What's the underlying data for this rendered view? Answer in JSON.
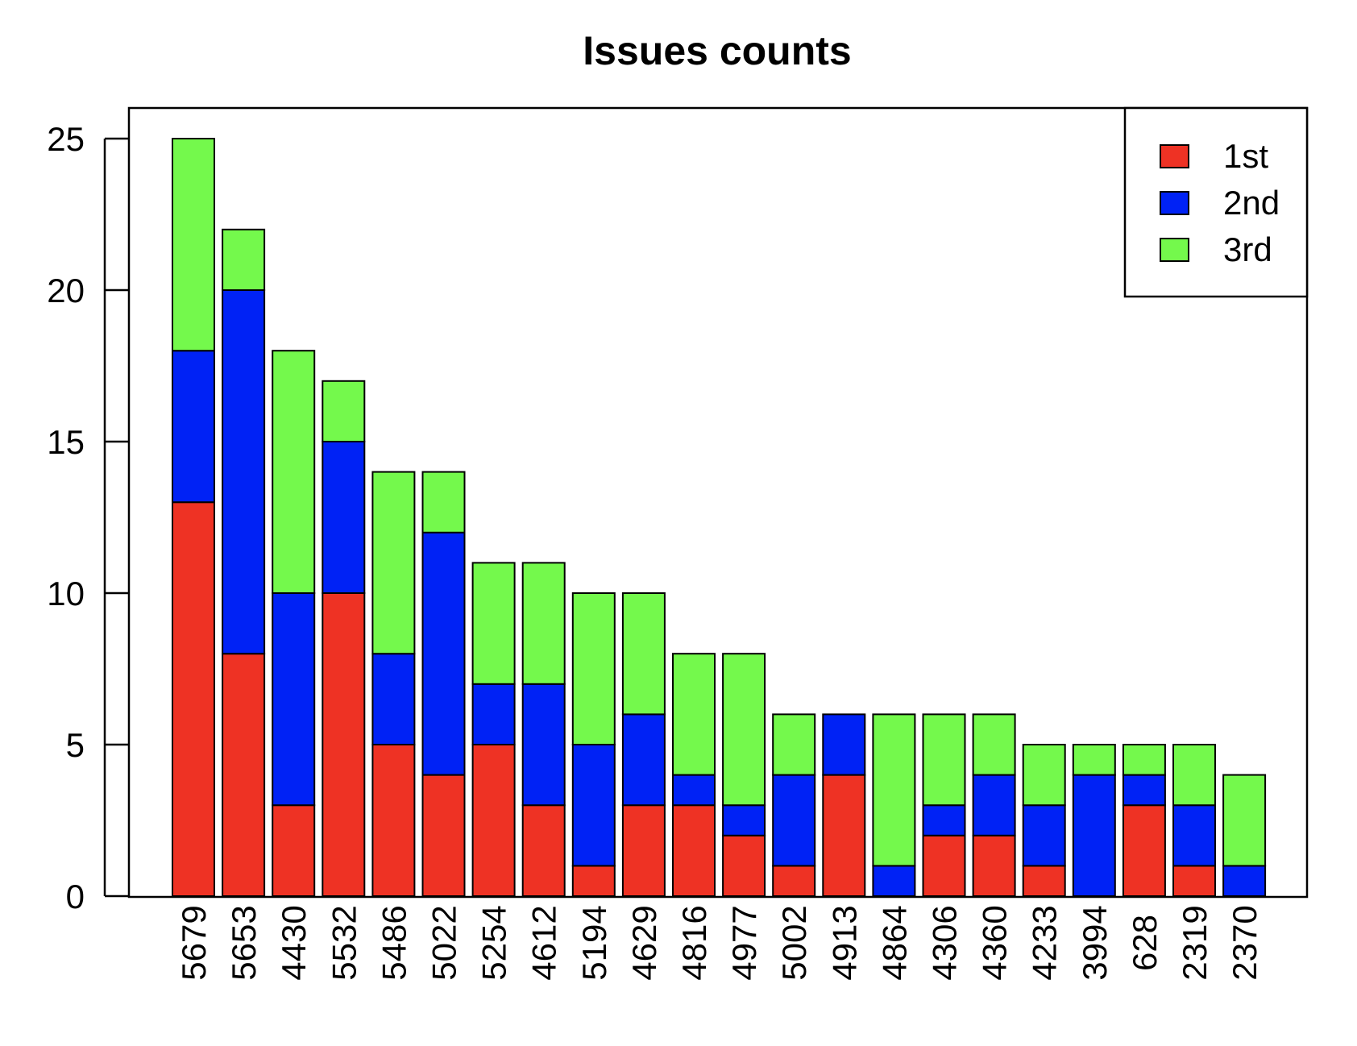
{
  "chart_data": {
    "type": "bar",
    "stacked": true,
    "title": "Issues counts",
    "xlabel": "",
    "ylabel": "",
    "ylim": [
      0,
      26
    ],
    "yticks": [
      0,
      5,
      10,
      15,
      20,
      25
    ],
    "grid": false,
    "legend_position": "top-right",
    "categories": [
      "5679",
      "5653",
      "4430",
      "5532",
      "5486",
      "5022",
      "5254",
      "4612",
      "5194",
      "4629",
      "4816",
      "4977",
      "5002",
      "4913",
      "4864",
      "4306",
      "4360",
      "4233",
      "3994",
      "628",
      "2319",
      "2370"
    ],
    "series": [
      {
        "name": "1st",
        "color": "#ee3224",
        "values": [
          13,
          8,
          3,
          10,
          5,
          4,
          5,
          3,
          1,
          3,
          3,
          2,
          1,
          4,
          0,
          2,
          2,
          1,
          0,
          3,
          1,
          0
        ]
      },
      {
        "name": "2nd",
        "color": "#0022f5",
        "values": [
          5,
          12,
          7,
          5,
          3,
          8,
          2,
          4,
          4,
          3,
          1,
          1,
          3,
          2,
          1,
          1,
          2,
          2,
          4,
          1,
          2,
          1
        ]
      },
      {
        "name": "3rd",
        "color": "#74f94c",
        "values": [
          7,
          2,
          8,
          2,
          6,
          2,
          4,
          4,
          5,
          4,
          4,
          5,
          2,
          0,
          5,
          3,
          2,
          2,
          1,
          1,
          2,
          3
        ]
      }
    ]
  }
}
